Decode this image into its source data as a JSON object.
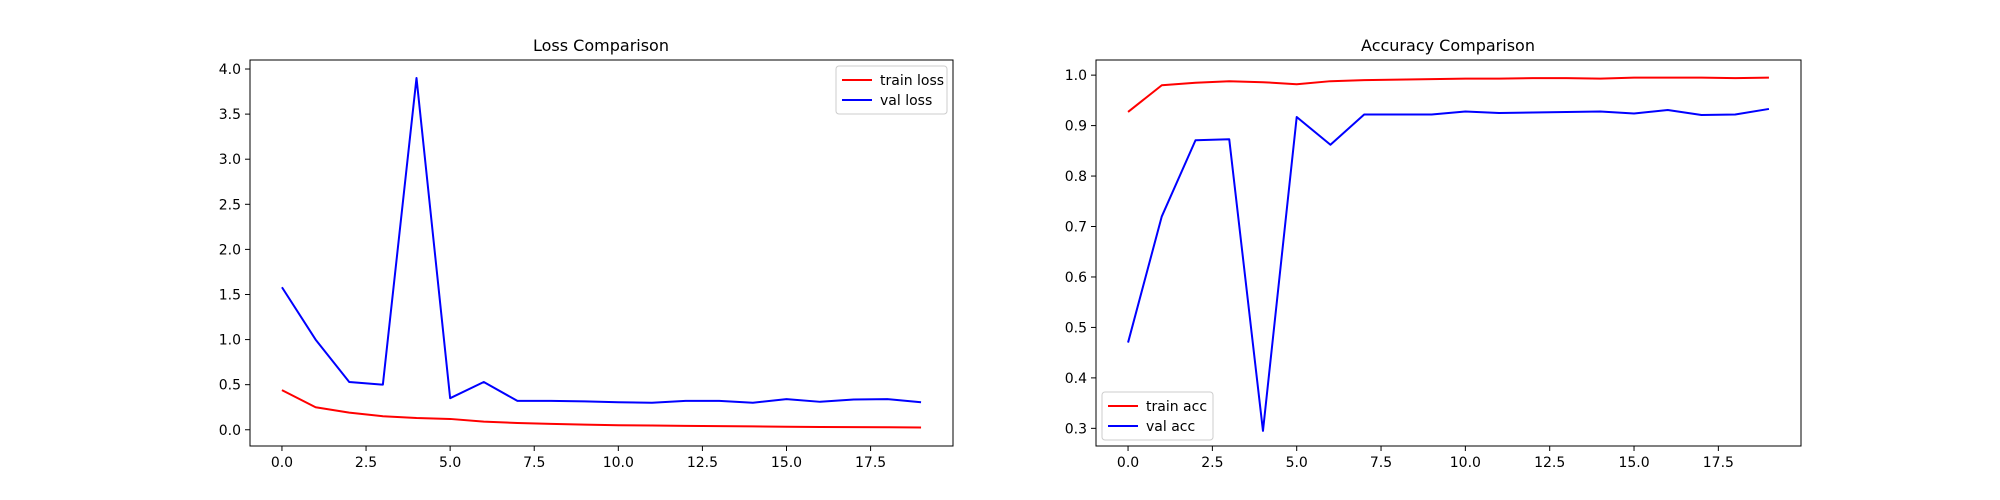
{
  "chart_data": [
    {
      "type": "line",
      "title": "Loss Comparison",
      "xlabel": "",
      "ylabel": "",
      "xlim": [
        -0.95,
        19.95
      ],
      "ylim": [
        -0.18,
        4.1
      ],
      "xticks": [
        0,
        2.5,
        5,
        7.5,
        10,
        12.5,
        15,
        17.5
      ],
      "xtick_labels": [
        "0.0",
        "2.5",
        "5.0",
        "7.5",
        "10.0",
        "12.5",
        "15.0",
        "17.5"
      ],
      "yticks": [
        0,
        0.5,
        1,
        1.5,
        2,
        2.5,
        3,
        3.5,
        4
      ],
      "ytick_labels": [
        "0.0",
        "0.5",
        "1.0",
        "1.5",
        "2.0",
        "2.5",
        "3.0",
        "3.5",
        "4.0"
      ],
      "grid": false,
      "legend_position": "top-right",
      "x": [
        0,
        1,
        2,
        3,
        4,
        5,
        6,
        7,
        8,
        9,
        10,
        11,
        12,
        13,
        14,
        15,
        16,
        17,
        18,
        19
      ],
      "series": [
        {
          "name": "train loss",
          "color": "#ff0000",
          "values": [
            0.44,
            0.25,
            0.19,
            0.15,
            0.13,
            0.12,
            0.09,
            0.075,
            0.065,
            0.057,
            0.05,
            0.047,
            0.043,
            0.04,
            0.038,
            0.033,
            0.031,
            0.029,
            0.028,
            0.025
          ]
        },
        {
          "name": "val loss",
          "color": "#0000ff",
          "values": [
            1.58,
            1.0,
            0.53,
            0.5,
            3.9,
            0.35,
            0.53,
            0.32,
            0.32,
            0.315,
            0.305,
            0.3,
            0.32,
            0.32,
            0.3,
            0.34,
            0.31,
            0.335,
            0.34,
            0.305
          ]
        }
      ]
    },
    {
      "type": "line",
      "title": "Accuracy Comparison",
      "xlabel": "",
      "ylabel": "",
      "xlim": [
        -0.95,
        19.95
      ],
      "ylim": [
        0.265,
        1.03
      ],
      "xticks": [
        0,
        2.5,
        5,
        7.5,
        10,
        12.5,
        15,
        17.5
      ],
      "xtick_labels": [
        "0.0",
        "2.5",
        "5.0",
        "7.5",
        "10.0",
        "12.5",
        "15.0",
        "17.5"
      ],
      "yticks": [
        0.3,
        0.4,
        0.5,
        0.6,
        0.7,
        0.8,
        0.9,
        1.0
      ],
      "ytick_labels": [
        "0.3",
        "0.4",
        "0.5",
        "0.6",
        "0.7",
        "0.8",
        "0.9",
        "1.0"
      ],
      "grid": false,
      "legend_position": "bottom-left",
      "x": [
        0,
        1,
        2,
        3,
        4,
        5,
        6,
        7,
        8,
        9,
        10,
        11,
        12,
        13,
        14,
        15,
        16,
        17,
        18,
        19
      ],
      "series": [
        {
          "name": "train acc",
          "color": "#ff0000",
          "values": [
            0.927,
            0.98,
            0.985,
            0.988,
            0.986,
            0.982,
            0.988,
            0.99,
            0.991,
            0.992,
            0.993,
            0.993,
            0.994,
            0.994,
            0.993,
            0.995,
            0.995,
            0.995,
            0.994,
            0.995
          ]
        },
        {
          "name": "val acc",
          "color": "#0000ff",
          "values": [
            0.47,
            0.72,
            0.871,
            0.873,
            0.295,
            0.917,
            0.862,
            0.922,
            0.922,
            0.922,
            0.928,
            0.925,
            0.926,
            0.927,
            0.928,
            0.924,
            0.931,
            0.921,
            0.922,
            0.933
          ]
        }
      ]
    }
  ]
}
